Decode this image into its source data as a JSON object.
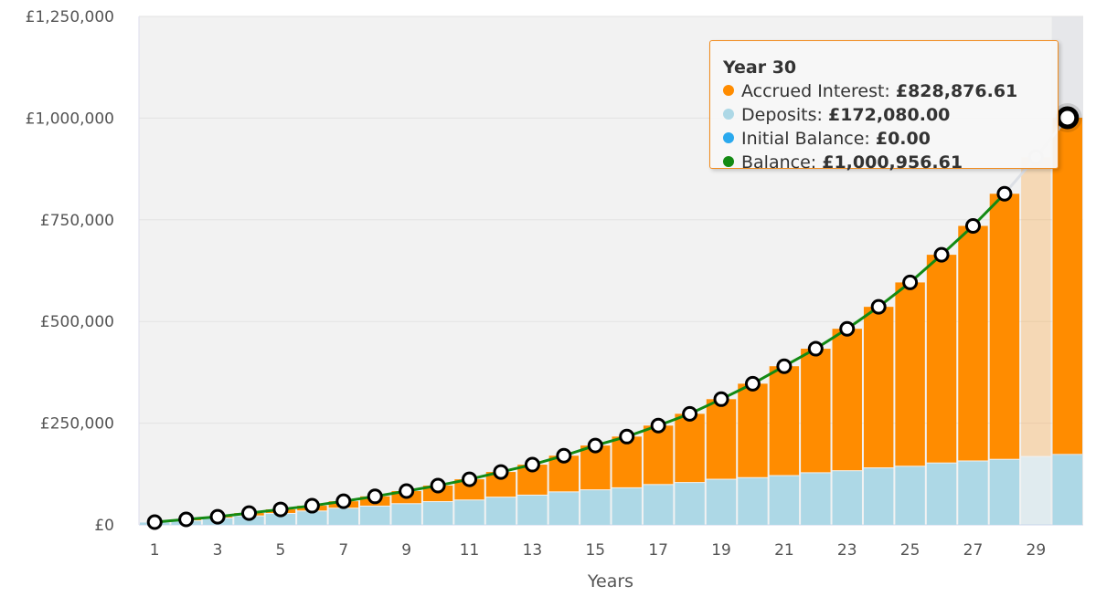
{
  "chart_data": {
    "type": "bar",
    "stacked": true,
    "xlabel": "Years",
    "ylabel": "",
    "ylim": [
      0,
      1250000
    ],
    "yticks": [
      "£0",
      "£250,000",
      "£500,000",
      "£750,000",
      "£1,000,000",
      "£1,250,000"
    ],
    "ytick_values": [
      0,
      250000,
      500000,
      750000,
      1000000,
      1250000
    ],
    "xtick_labels": [
      "1",
      "3",
      "5",
      "7",
      "9",
      "11",
      "13",
      "15",
      "17",
      "19",
      "21",
      "23",
      "25",
      "27",
      "29"
    ],
    "categories": [
      1,
      2,
      3,
      4,
      5,
      6,
      7,
      8,
      9,
      10,
      11,
      12,
      13,
      14,
      15,
      16,
      17,
      18,
      19,
      20,
      21,
      22,
      23,
      24,
      25,
      26,
      27,
      28,
      29,
      30
    ],
    "grid": true,
    "colors": {
      "interest": "#ff8c00",
      "deposits": "#add8e6",
      "initial": "#2aa9ee",
      "balance": "#138a13",
      "plot_bg": "#f2f2f2"
    },
    "series": [
      {
        "name": "Deposits",
        "type": "bar",
        "values": [
          5700,
          9000,
          15700,
          21000,
          27000,
          33000,
          40000,
          45000,
          51000,
          56000,
          60000,
          67000,
          72000,
          80000,
          85000,
          90000,
          98000,
          103000,
          111000,
          115000,
          120000,
          127000,
          132000,
          139000,
          143000,
          151000,
          156000,
          160000,
          167000,
          172080
        ]
      },
      {
        "name": "Accrued Interest",
        "type": "bar",
        "values": [
          1000,
          4500,
          4300,
          8000,
          11000,
          14000,
          18000,
          25000,
          32000,
          40600,
          52000,
          63000,
          76000,
          90000,
          110000,
          127000,
          146000,
          170000,
          198000,
          232000,
          270000,
          306000,
          350000,
          397000,
          453000,
          513000,
          579000,
          654000,
          737000,
          828876.61
        ]
      },
      {
        "name": "Initial Balance",
        "type": "bar",
        "values": [
          0,
          0,
          0,
          0,
          0,
          0,
          0,
          0,
          0,
          0,
          0,
          0,
          0,
          0,
          0,
          0,
          0,
          0,
          0,
          0,
          0,
          0,
          0,
          0,
          0,
          0,
          0,
          0,
          0,
          0
        ]
      },
      {
        "name": "Balance",
        "type": "line",
        "values": [
          6700,
          13500,
          20000,
          29000,
          38000,
          47000,
          58000,
          70000,
          83000,
          96600,
          112000,
          130000,
          148000,
          170000,
          195000,
          217000,
          244000,
          273000,
          309000,
          347000,
          390000,
          433000,
          482000,
          536000,
          596000,
          664000,
          735000,
          814000,
          904000,
          1000956.61
        ]
      }
    ],
    "tooltip": {
      "title": "Year 30",
      "rows": [
        {
          "label": "Accrued Interest: ",
          "value": "£828,876.61",
          "color": "#ff8c00"
        },
        {
          "label": "Deposits: ",
          "value": "£172,080.00",
          "color": "#add8e6"
        },
        {
          "label": "Initial Balance: ",
          "value": "£0.00",
          "color": "#2aa9ee"
        },
        {
          "label": "Balance: ",
          "value": "£1,000,956.61",
          "color": "#138a13"
        }
      ]
    },
    "highlighted_year": 30
  }
}
